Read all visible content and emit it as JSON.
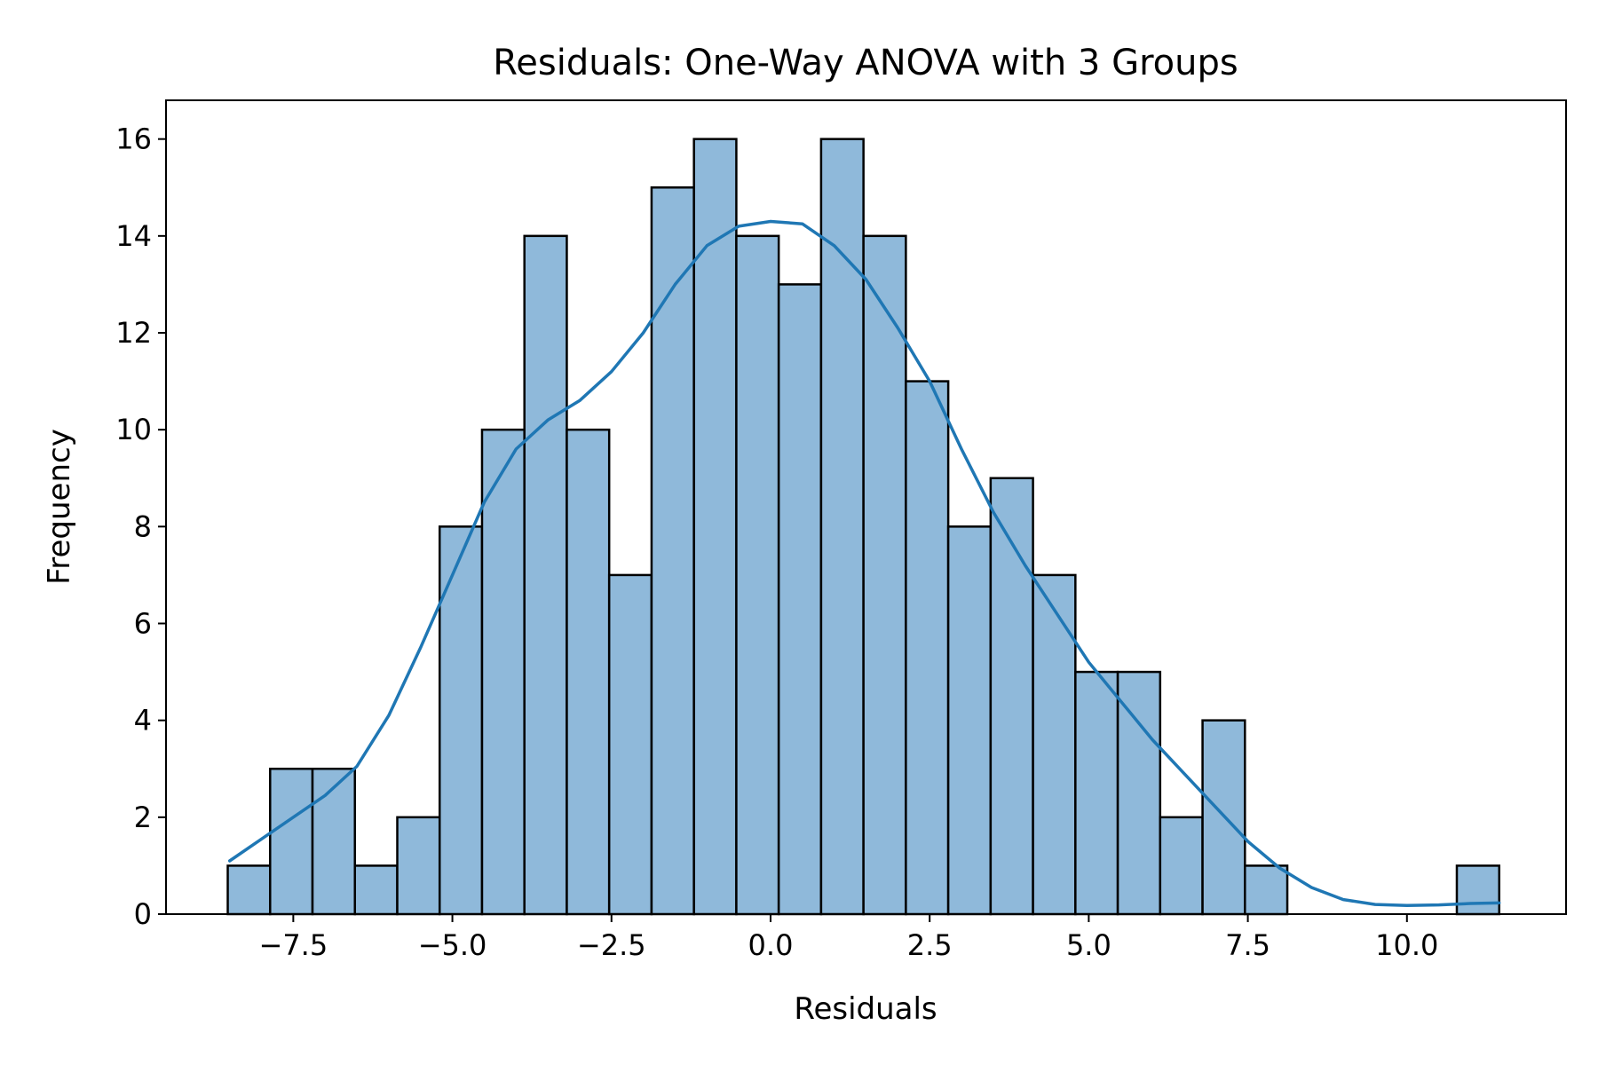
{
  "chart_data": {
    "type": "bar",
    "title": "Residuals: One-Way ANOVA with 3 Groups",
    "xlabel": "Residuals",
    "ylabel": "Frequency",
    "xlim": [
      -9.5,
      12.5
    ],
    "ylim": [
      0,
      16.8
    ],
    "bin_edges": [
      -8.53,
      -7.864,
      -7.198,
      -6.532,
      -5.866,
      -5.2,
      -4.534,
      -3.868,
      -3.202,
      -2.536,
      -1.87,
      -1.204,
      -0.538,
      0.128,
      0.794,
      1.46,
      2.126,
      2.792,
      3.458,
      4.124,
      4.79,
      5.456,
      6.122,
      6.788,
      7.454,
      8.12,
      8.786,
      9.452,
      10.118,
      10.784,
      11.45
    ],
    "counts": [
      1,
      3,
      3,
      1,
      2,
      8,
      10,
      14,
      10,
      7,
      15,
      16,
      14,
      13,
      16,
      14,
      11,
      8,
      9,
      7,
      5,
      5,
      2,
      4,
      1,
      0,
      0,
      0,
      0,
      1
    ],
    "kde": {
      "x": [
        -8.5,
        -8.0,
        -7.5,
        -7.0,
        -6.5,
        -6.0,
        -5.5,
        -5.0,
        -4.5,
        -4.0,
        -3.5,
        -3.0,
        -2.5,
        -2.0,
        -1.5,
        -1.0,
        -0.5,
        0.0,
        0.5,
        1.0,
        1.5,
        2.0,
        2.5,
        3.0,
        3.5,
        4.0,
        4.5,
        5.0,
        5.5,
        6.0,
        6.5,
        7.0,
        7.5,
        8.0,
        8.5,
        9.0,
        9.5,
        10.0,
        10.5,
        11.0,
        11.45
      ],
      "y": [
        1.1,
        1.55,
        2.0,
        2.45,
        3.05,
        4.1,
        5.5,
        7.0,
        8.5,
        9.6,
        10.2,
        10.6,
        11.2,
        12.0,
        13.0,
        13.8,
        14.2,
        14.3,
        14.25,
        13.8,
        13.1,
        12.1,
        11.0,
        9.6,
        8.3,
        7.2,
        6.2,
        5.2,
        4.4,
        3.6,
        2.9,
        2.2,
        1.5,
        0.95,
        0.55,
        0.3,
        0.2,
        0.18,
        0.19,
        0.22,
        0.23
      ]
    },
    "xticks": [
      -7.5,
      -5.0,
      -2.5,
      0.0,
      2.5,
      5.0,
      7.5,
      10.0
    ],
    "xtick_labels": [
      "−7.5",
      "−5.0",
      "−2.5",
      "0.0",
      "2.5",
      "5.0",
      "7.5",
      "10.0"
    ],
    "yticks": [
      0,
      2,
      4,
      6,
      8,
      10,
      12,
      14,
      16
    ],
    "ytick_labels": [
      "0",
      "2",
      "4",
      "6",
      "8",
      "10",
      "12",
      "14",
      "16"
    ],
    "bar_color": "#8fb9da",
    "bar_edge_color": "#000000",
    "line_color": "#1f77b4",
    "grid": false,
    "legend": "none"
  }
}
